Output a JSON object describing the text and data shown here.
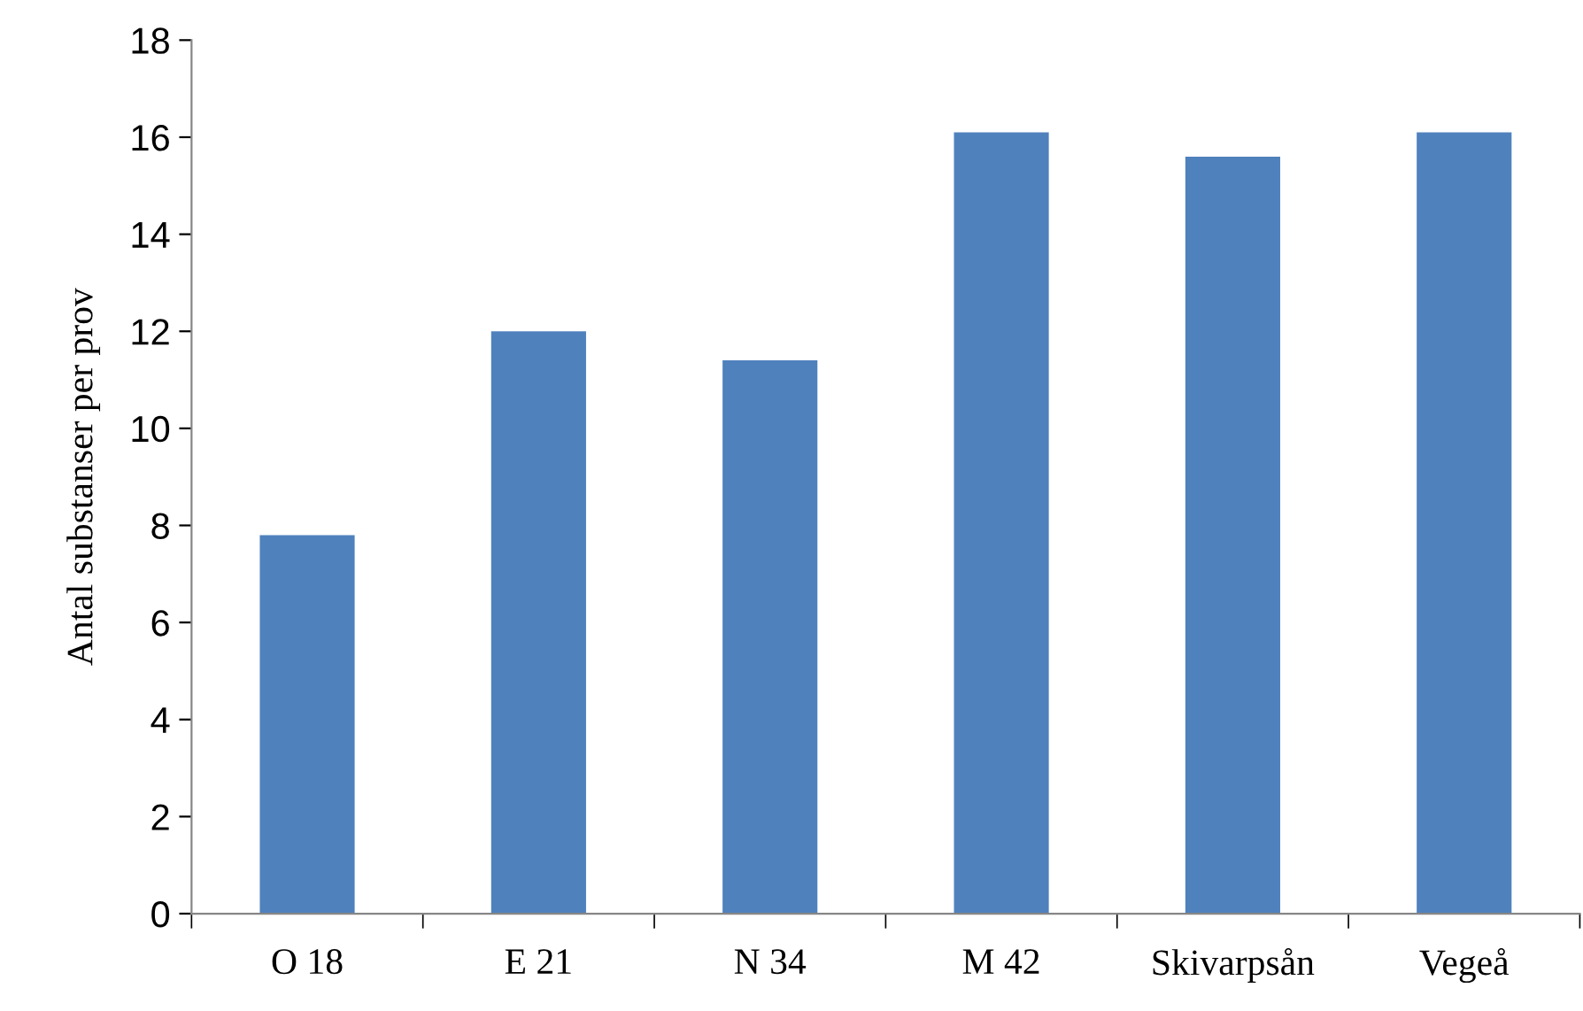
{
  "chart_data": {
    "type": "bar",
    "ylabel": "Antal substanser per prov",
    "categories": [
      "O 18",
      "E 21",
      "N 34",
      "M 42",
      "Skivarpsån",
      "Vegeå"
    ],
    "values": [
      7.8,
      12.0,
      11.4,
      16.1,
      15.6,
      16.1
    ],
    "color": "#4f81bd",
    "ylim": [
      0,
      18
    ],
    "yticks": [
      0,
      2,
      4,
      6,
      8,
      10,
      12,
      14,
      16,
      18
    ],
    "grid": false,
    "legend": false
  }
}
